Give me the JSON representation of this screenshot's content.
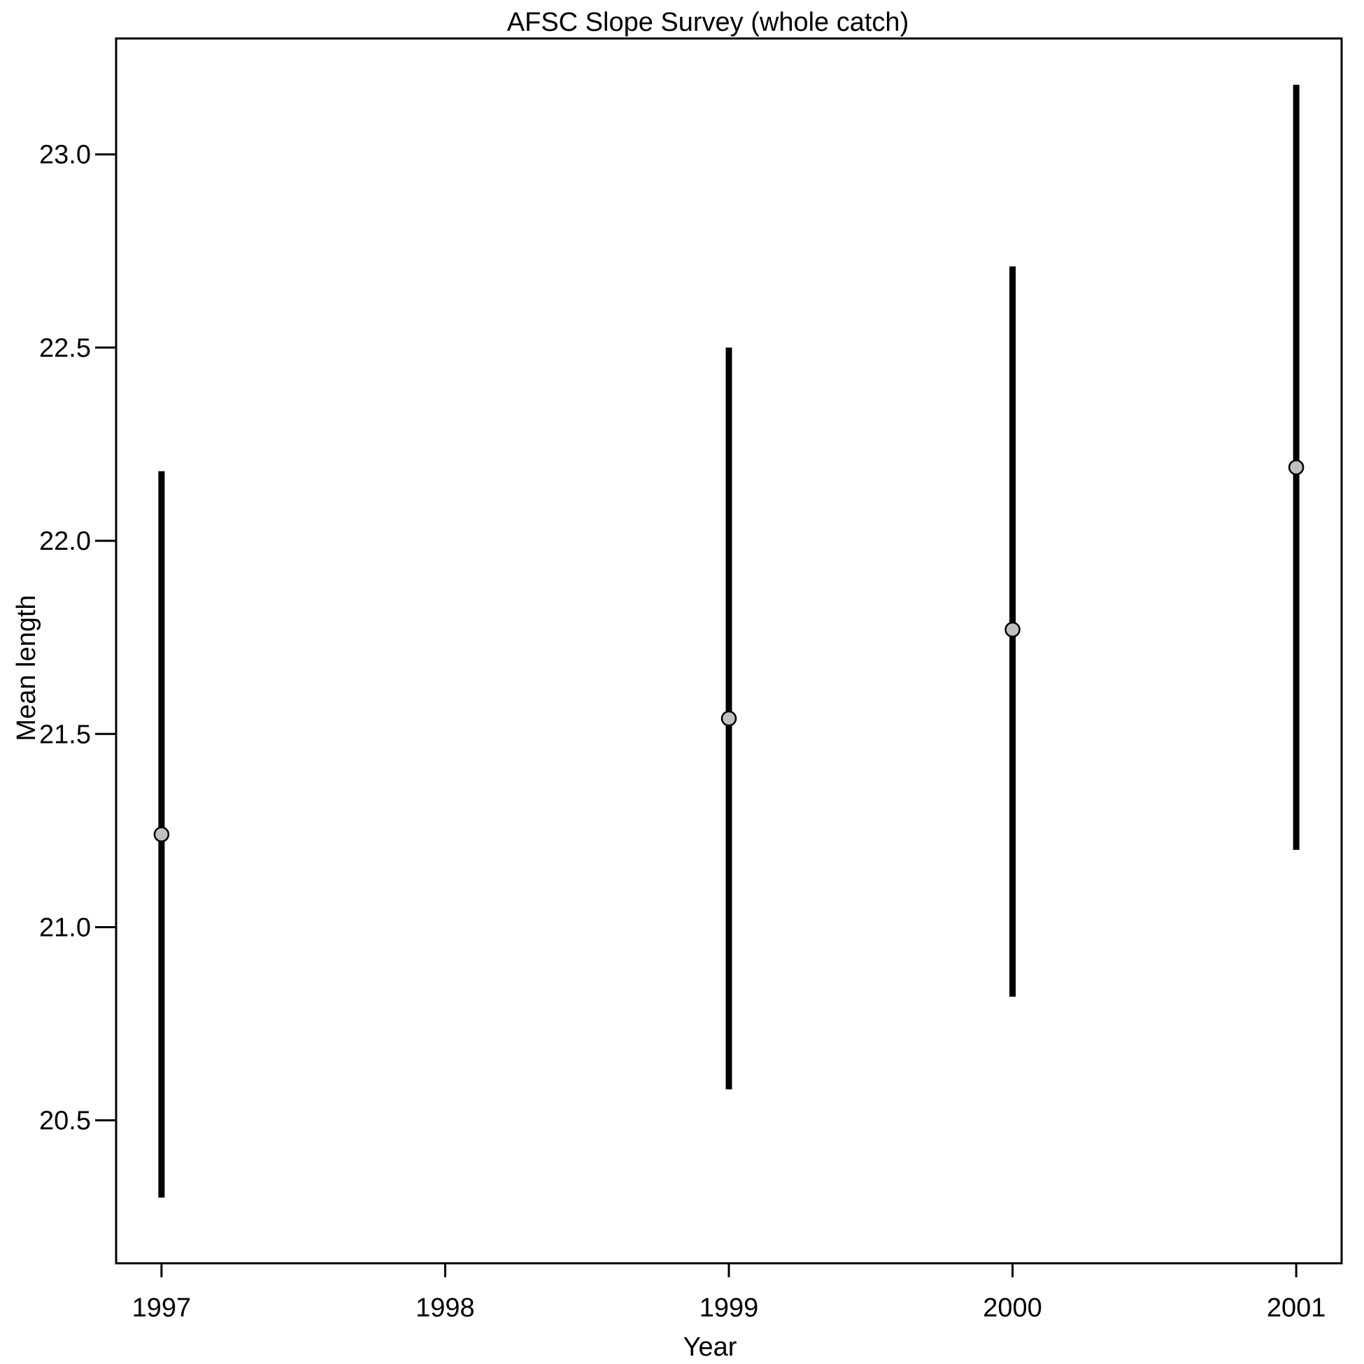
{
  "chart_data": {
    "type": "scatter",
    "title": "AFSC Slope Survey (whole catch)",
    "xlabel": "Year",
    "ylabel": "Mean length",
    "x_ticks": [
      "1997",
      "1998",
      "1999",
      "2000",
      "2001"
    ],
    "x_tick_values": [
      1997,
      1998,
      1999,
      2000,
      2001
    ],
    "y_ticks": [
      "20.5",
      "21.0",
      "21.5",
      "22.0",
      "22.5",
      "23.0"
    ],
    "y_tick_values": [
      20.5,
      21.0,
      21.5,
      22.0,
      22.5,
      23.0
    ],
    "xlim": [
      1996.84,
      2001.16
    ],
    "ylim": [
      20.13,
      23.3
    ],
    "grid": false,
    "points": [
      {
        "x": 1997,
        "y": 21.24,
        "lower": 20.3,
        "upper": 22.18
      },
      {
        "x": 1999,
        "y": 21.54,
        "lower": 20.58,
        "upper": 22.5
      },
      {
        "x": 2000,
        "y": 21.77,
        "lower": 20.82,
        "upper": 22.71
      },
      {
        "x": 2001,
        "y": 22.19,
        "lower": 21.2,
        "upper": 23.18
      }
    ],
    "colors": {
      "marker_fill": "#c0c0c0",
      "line": "#000000",
      "frame": "#000000"
    }
  }
}
